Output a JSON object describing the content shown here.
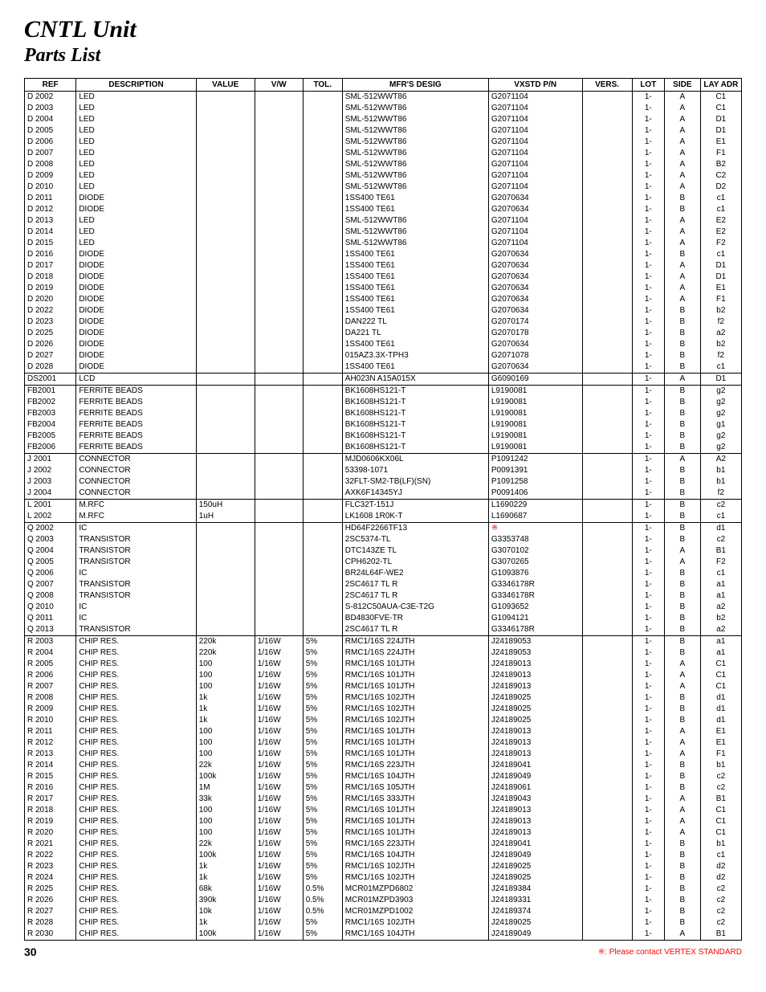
{
  "title": "CNTL Unit",
  "subtitle": "Parts List",
  "headers": [
    "REF",
    "DESCRIPTION",
    "VALUE",
    "V/W",
    "TOL.",
    "MFR'S DESIG",
    "VXSTD P/N",
    "VERS.",
    "LOT",
    "SIDE",
    "LAY ADR"
  ],
  "footer": {
    "page": "30",
    "note": "※: Please contact VERTEX STANDARD"
  },
  "rows": [
    {
      "sep": true,
      "ref": "D 2002",
      "desc": "LED",
      "val": "",
      "vw": "",
      "tol": "",
      "mfr": "SML-512WWT86",
      "pn": "G2071104",
      "vers": "",
      "lot": "1-",
      "side": "A",
      "lay": "C1"
    },
    {
      "ref": "D 2003",
      "desc": "LED",
      "val": "",
      "vw": "",
      "tol": "",
      "mfr": "SML-512WWT86",
      "pn": "G2071104",
      "vers": "",
      "lot": "1-",
      "side": "A",
      "lay": "C1"
    },
    {
      "ref": "D 2004",
      "desc": "LED",
      "val": "",
      "vw": "",
      "tol": "",
      "mfr": "SML-512WWT86",
      "pn": "G2071104",
      "vers": "",
      "lot": "1-",
      "side": "A",
      "lay": "D1"
    },
    {
      "ref": "D 2005",
      "desc": "LED",
      "val": "",
      "vw": "",
      "tol": "",
      "mfr": "SML-512WWT86",
      "pn": "G2071104",
      "vers": "",
      "lot": "1-",
      "side": "A",
      "lay": "D1"
    },
    {
      "ref": "D 2006",
      "desc": "LED",
      "val": "",
      "vw": "",
      "tol": "",
      "mfr": "SML-512WWT86",
      "pn": "G2071104",
      "vers": "",
      "lot": "1-",
      "side": "A",
      "lay": "E1"
    },
    {
      "ref": "D 2007",
      "desc": "LED",
      "val": "",
      "vw": "",
      "tol": "",
      "mfr": "SML-512WWT86",
      "pn": "G2071104",
      "vers": "",
      "lot": "1-",
      "side": "A",
      "lay": "F1"
    },
    {
      "ref": "D 2008",
      "desc": "LED",
      "val": "",
      "vw": "",
      "tol": "",
      "mfr": "SML-512WWT86",
      "pn": "G2071104",
      "vers": "",
      "lot": "1-",
      "side": "A",
      "lay": "B2"
    },
    {
      "ref": "D 2009",
      "desc": "LED",
      "val": "",
      "vw": "",
      "tol": "",
      "mfr": "SML-512WWT86",
      "pn": "G2071104",
      "vers": "",
      "lot": "1-",
      "side": "A",
      "lay": "C2"
    },
    {
      "ref": "D 2010",
      "desc": "LED",
      "val": "",
      "vw": "",
      "tol": "",
      "mfr": "SML-512WWT86",
      "pn": "G2071104",
      "vers": "",
      "lot": "1-",
      "side": "A",
      "lay": "D2"
    },
    {
      "ref": "D 2011",
      "desc": "DIODE",
      "val": "",
      "vw": "",
      "tol": "",
      "mfr": "1SS400 TE61",
      "pn": "G2070634",
      "vers": "",
      "lot": "1-",
      "side": "B",
      "lay": "c1"
    },
    {
      "ref": "D 2012",
      "desc": "DIODE",
      "val": "",
      "vw": "",
      "tol": "",
      "mfr": "1SS400 TE61",
      "pn": "G2070634",
      "vers": "",
      "lot": "1-",
      "side": "B",
      "lay": "c1"
    },
    {
      "ref": "D 2013",
      "desc": "LED",
      "val": "",
      "vw": "",
      "tol": "",
      "mfr": "SML-512WWT86",
      "pn": "G2071104",
      "vers": "",
      "lot": "1-",
      "side": "A",
      "lay": "E2"
    },
    {
      "ref": "D 2014",
      "desc": "LED",
      "val": "",
      "vw": "",
      "tol": "",
      "mfr": "SML-512WWT86",
      "pn": "G2071104",
      "vers": "",
      "lot": "1-",
      "side": "A",
      "lay": "E2"
    },
    {
      "ref": "D 2015",
      "desc": "LED",
      "val": "",
      "vw": "",
      "tol": "",
      "mfr": "SML-512WWT86",
      "pn": "G2071104",
      "vers": "",
      "lot": "1-",
      "side": "A",
      "lay": "F2"
    },
    {
      "ref": "D 2016",
      "desc": "DIODE",
      "val": "",
      "vw": "",
      "tol": "",
      "mfr": "1SS400 TE61",
      "pn": "G2070634",
      "vers": "",
      "lot": "1-",
      "side": "B",
      "lay": "c1"
    },
    {
      "ref": "D 2017",
      "desc": "DIODE",
      "val": "",
      "vw": "",
      "tol": "",
      "mfr": "1SS400 TE61",
      "pn": "G2070634",
      "vers": "",
      "lot": "1-",
      "side": "A",
      "lay": "D1"
    },
    {
      "ref": "D 2018",
      "desc": "DIODE",
      "val": "",
      "vw": "",
      "tol": "",
      "mfr": "1SS400 TE61",
      "pn": "G2070634",
      "vers": "",
      "lot": "1-",
      "side": "A",
      "lay": "D1"
    },
    {
      "ref": "D 2019",
      "desc": "DIODE",
      "val": "",
      "vw": "",
      "tol": "",
      "mfr": "1SS400 TE61",
      "pn": "G2070634",
      "vers": "",
      "lot": "1-",
      "side": "A",
      "lay": "E1"
    },
    {
      "ref": "D 2020",
      "desc": "DIODE",
      "val": "",
      "vw": "",
      "tol": "",
      "mfr": "1SS400 TE61",
      "pn": "G2070634",
      "vers": "",
      "lot": "1-",
      "side": "A",
      "lay": "F1"
    },
    {
      "ref": "D 2022",
      "desc": "DIODE",
      "val": "",
      "vw": "",
      "tol": "",
      "mfr": "1SS400 TE61",
      "pn": "G2070634",
      "vers": "",
      "lot": "1-",
      "side": "B",
      "lay": "b2"
    },
    {
      "ref": "D 2023",
      "desc": "DIODE",
      "val": "",
      "vw": "",
      "tol": "",
      "mfr": "DAN222 TL",
      "pn": "G2070174",
      "vers": "",
      "lot": "1-",
      "side": "B",
      "lay": "f2"
    },
    {
      "ref": "D 2025",
      "desc": "DIODE",
      "val": "",
      "vw": "",
      "tol": "",
      "mfr": "DA221 TL",
      "pn": "G2070178",
      "vers": "",
      "lot": "1-",
      "side": "B",
      "lay": "a2"
    },
    {
      "ref": "D 2026",
      "desc": "DIODE",
      "val": "",
      "vw": "",
      "tol": "",
      "mfr": "1SS400 TE61",
      "pn": "G2070634",
      "vers": "",
      "lot": "1-",
      "side": "B",
      "lay": "b2"
    },
    {
      "ref": "D 2027",
      "desc": "DIODE",
      "val": "",
      "vw": "",
      "tol": "",
      "mfr": "015AZ3.3X-TPH3",
      "pn": "G2071078",
      "vers": "",
      "lot": "1-",
      "side": "B",
      "lay": "f2"
    },
    {
      "ref": "D 2028",
      "desc": "DIODE",
      "val": "",
      "vw": "",
      "tol": "",
      "mfr": "1SS400 TE61",
      "pn": "G2070634",
      "vers": "",
      "lot": "1-",
      "side": "B",
      "lay": "c1"
    },
    {
      "sep": true,
      "ref": "DS2001",
      "desc": "LCD",
      "val": "",
      "vw": "",
      "tol": "",
      "mfr": "AH023N A15A015X",
      "pn": "G6090169",
      "vers": "",
      "lot": "1-",
      "side": "A",
      "lay": "D1"
    },
    {
      "sep": true,
      "ref": "FB2001",
      "desc": "FERRITE BEADS",
      "val": "",
      "vw": "",
      "tol": "",
      "mfr": "BK1608HS121-T",
      "pn": "L9190081",
      "vers": "",
      "lot": "1-",
      "side": "B",
      "lay": "g2"
    },
    {
      "ref": "FB2002",
      "desc": "FERRITE BEADS",
      "val": "",
      "vw": "",
      "tol": "",
      "mfr": "BK1608HS121-T",
      "pn": "L9190081",
      "vers": "",
      "lot": "1-",
      "side": "B",
      "lay": "g2"
    },
    {
      "ref": "FB2003",
      "desc": "FERRITE BEADS",
      "val": "",
      "vw": "",
      "tol": "",
      "mfr": "BK1608HS121-T",
      "pn": "L9190081",
      "vers": "",
      "lot": "1-",
      "side": "B",
      "lay": "g2"
    },
    {
      "ref": "FB2004",
      "desc": "FERRITE BEADS",
      "val": "",
      "vw": "",
      "tol": "",
      "mfr": "BK1608HS121-T",
      "pn": "L9190081",
      "vers": "",
      "lot": "1-",
      "side": "B",
      "lay": "g1"
    },
    {
      "ref": "FB2005",
      "desc": "FERRITE BEADS",
      "val": "",
      "vw": "",
      "tol": "",
      "mfr": "BK1608HS121-T",
      "pn": "L9190081",
      "vers": "",
      "lot": "1-",
      "side": "B",
      "lay": "g2"
    },
    {
      "ref": "FB2006",
      "desc": "FERRITE BEADS",
      "val": "",
      "vw": "",
      "tol": "",
      "mfr": "BK1608HS121-T",
      "pn": "L9190081",
      "vers": "",
      "lot": "1-",
      "side": "B",
      "lay": "g2"
    },
    {
      "sep": true,
      "ref": "J 2001",
      "desc": "CONNECTOR",
      "val": "",
      "vw": "",
      "tol": "",
      "mfr": "MJD0606KX06L",
      "pn": "P1091242",
      "vers": "",
      "lot": "1-",
      "side": "A",
      "lay": "A2"
    },
    {
      "ref": "J 2002",
      "desc": "CONNECTOR",
      "val": "",
      "vw": "",
      "tol": "",
      "mfr": "53398-1071",
      "pn": "P0091391",
      "vers": "",
      "lot": "1-",
      "side": "B",
      "lay": "b1"
    },
    {
      "ref": "J 2003",
      "desc": "CONNECTOR",
      "val": "",
      "vw": "",
      "tol": "",
      "mfr": "32FLT-SM2-TB(LF)(SN)",
      "pn": "P1091258",
      "vers": "",
      "lot": "1-",
      "side": "B",
      "lay": "b1"
    },
    {
      "ref": "J 2004",
      "desc": "CONNECTOR",
      "val": "",
      "vw": "",
      "tol": "",
      "mfr": "AXK6F14345YJ",
      "pn": "P0091406",
      "vers": "",
      "lot": "1-",
      "side": "B",
      "lay": "f2"
    },
    {
      "sep": true,
      "ref": "L 2001",
      "desc": "M.RFC",
      "val": "150uH",
      "vw": "",
      "tol": "",
      "mfr": "FLC32T-151J",
      "pn": "L1690229",
      "vers": "",
      "lot": "1-",
      "side": "B",
      "lay": "c2"
    },
    {
      "ref": "L 2002",
      "desc": "M.RFC",
      "val": "1uH",
      "vw": "",
      "tol": "",
      "mfr": "LK1608 1R0K-T",
      "pn": "L1690687",
      "vers": "",
      "lot": "1-",
      "side": "B",
      "lay": "c1"
    },
    {
      "sep": true,
      "ref": "Q 2002",
      "desc": "IC",
      "val": "",
      "vw": "",
      "tol": "",
      "mfr": "HD64F2266TF13",
      "pn": "※",
      "pnred": true,
      "vers": "",
      "lot": "1-",
      "side": "B",
      "lay": "d1"
    },
    {
      "ref": "Q 2003",
      "desc": "TRANSISTOR",
      "val": "",
      "vw": "",
      "tol": "",
      "mfr": "2SC5374-TL",
      "pn": "G3353748",
      "vers": "",
      "lot": "1-",
      "side": "B",
      "lay": "c2"
    },
    {
      "ref": "Q 2004",
      "desc": "TRANSISTOR",
      "val": "",
      "vw": "",
      "tol": "",
      "mfr": "DTC143ZE TL",
      "pn": "G3070102",
      "vers": "",
      "lot": "1-",
      "side": "A",
      "lay": "B1"
    },
    {
      "ref": "Q 2005",
      "desc": "TRANSISTOR",
      "val": "",
      "vw": "",
      "tol": "",
      "mfr": "CPH6202-TL",
      "pn": "G3070265",
      "vers": "",
      "lot": "1-",
      "side": "A",
      "lay": "F2"
    },
    {
      "ref": "Q 2006",
      "desc": "IC",
      "val": "",
      "vw": "",
      "tol": "",
      "mfr": "BR24L64F-WE2",
      "pn": "G1093876",
      "vers": "",
      "lot": "1-",
      "side": "B",
      "lay": "c1"
    },
    {
      "ref": "Q 2007",
      "desc": "TRANSISTOR",
      "val": "",
      "vw": "",
      "tol": "",
      "mfr": "2SC4617 TL R",
      "pn": "G3346178R",
      "vers": "",
      "lot": "1-",
      "side": "B",
      "lay": "a1"
    },
    {
      "ref": "Q 2008",
      "desc": "TRANSISTOR",
      "val": "",
      "vw": "",
      "tol": "",
      "mfr": "2SC4617 TL R",
      "pn": "G3346178R",
      "vers": "",
      "lot": "1-",
      "side": "B",
      "lay": "a1"
    },
    {
      "ref": "Q 2010",
      "desc": "IC",
      "val": "",
      "vw": "",
      "tol": "",
      "mfr": "S-812C50AUA-C3E-T2G",
      "pn": "G1093652",
      "vers": "",
      "lot": "1-",
      "side": "B",
      "lay": "a2"
    },
    {
      "ref": "Q 2011",
      "desc": "IC",
      "val": "",
      "vw": "",
      "tol": "",
      "mfr": "BD4830FVE-TR",
      "pn": "G1094121",
      "vers": "",
      "lot": "1-",
      "side": "B",
      "lay": "b2"
    },
    {
      "ref": "Q 2013",
      "desc": "TRANSISTOR",
      "val": "",
      "vw": "",
      "tol": "",
      "mfr": "2SC4617 TL R",
      "pn": "G3346178R",
      "vers": "",
      "lot": "1-",
      "side": "B",
      "lay": "a2"
    },
    {
      "sep": true,
      "ref": "R 2003",
      "desc": "CHIP RES.",
      "val": "220k",
      "vw": "1/16W",
      "tol": "5%",
      "mfr": "RMC1/16S 224JTH",
      "pn": "J24189053",
      "vers": "",
      "lot": "1-",
      "side": "B",
      "lay": "a1"
    },
    {
      "ref": "R 2004",
      "desc": "CHIP RES.",
      "val": "220k",
      "vw": "1/16W",
      "tol": "5%",
      "mfr": "RMC1/16S 224JTH",
      "pn": "J24189053",
      "vers": "",
      "lot": "1-",
      "side": "B",
      "lay": "a1"
    },
    {
      "ref": "R 2005",
      "desc": "CHIP RES.",
      "val": "100",
      "vw": "1/16W",
      "tol": "5%",
      "mfr": "RMC1/16S 101JTH",
      "pn": "J24189013",
      "vers": "",
      "lot": "1-",
      "side": "A",
      "lay": "C1"
    },
    {
      "ref": "R 2006",
      "desc": "CHIP RES.",
      "val": "100",
      "vw": "1/16W",
      "tol": "5%",
      "mfr": "RMC1/16S 101JTH",
      "pn": "J24189013",
      "vers": "",
      "lot": "1-",
      "side": "A",
      "lay": "C1"
    },
    {
      "ref": "R 2007",
      "desc": "CHIP RES.",
      "val": "100",
      "vw": "1/16W",
      "tol": "5%",
      "mfr": "RMC1/16S 101JTH",
      "pn": "J24189013",
      "vers": "",
      "lot": "1-",
      "side": "A",
      "lay": "C1"
    },
    {
      "ref": "R 2008",
      "desc": "CHIP RES.",
      "val": "1k",
      "vw": "1/16W",
      "tol": "5%",
      "mfr": "RMC1/16S 102JTH",
      "pn": "J24189025",
      "vers": "",
      "lot": "1-",
      "side": "B",
      "lay": "d1"
    },
    {
      "ref": "R 2009",
      "desc": "CHIP RES.",
      "val": "1k",
      "vw": "1/16W",
      "tol": "5%",
      "mfr": "RMC1/16S 102JTH",
      "pn": "J24189025",
      "vers": "",
      "lot": "1-",
      "side": "B",
      "lay": "d1"
    },
    {
      "ref": "R 2010",
      "desc": "CHIP RES.",
      "val": "1k",
      "vw": "1/16W",
      "tol": "5%",
      "mfr": "RMC1/16S 102JTH",
      "pn": "J24189025",
      "vers": "",
      "lot": "1-",
      "side": "B",
      "lay": "d1"
    },
    {
      "ref": "R 2011",
      "desc": "CHIP RES.",
      "val": "100",
      "vw": "1/16W",
      "tol": "5%",
      "mfr": "RMC1/16S 101JTH",
      "pn": "J24189013",
      "vers": "",
      "lot": "1-",
      "side": "A",
      "lay": "E1"
    },
    {
      "ref": "R 2012",
      "desc": "CHIP RES.",
      "val": "100",
      "vw": "1/16W",
      "tol": "5%",
      "mfr": "RMC1/16S 101JTH",
      "pn": "J24189013",
      "vers": "",
      "lot": "1-",
      "side": "A",
      "lay": "E1"
    },
    {
      "ref": "R 2013",
      "desc": "CHIP RES.",
      "val": "100",
      "vw": "1/16W",
      "tol": "5%",
      "mfr": "RMC1/16S 101JTH",
      "pn": "J24189013",
      "vers": "",
      "lot": "1-",
      "side": "A",
      "lay": "F1"
    },
    {
      "ref": "R 2014",
      "desc": "CHIP RES.",
      "val": "22k",
      "vw": "1/16W",
      "tol": "5%",
      "mfr": "RMC1/16S 223JTH",
      "pn": "J24189041",
      "vers": "",
      "lot": "1-",
      "side": "B",
      "lay": "b1"
    },
    {
      "ref": "R 2015",
      "desc": "CHIP RES.",
      "val": "100k",
      "vw": "1/16W",
      "tol": "5%",
      "mfr": "RMC1/16S 104JTH",
      "pn": "J24189049",
      "vers": "",
      "lot": "1-",
      "side": "B",
      "lay": "c2"
    },
    {
      "ref": "R 2016",
      "desc": "CHIP RES.",
      "val": "1M",
      "vw": "1/16W",
      "tol": "5%",
      "mfr": "RMC1/16S 105JTH",
      "pn": "J24189061",
      "vers": "",
      "lot": "1-",
      "side": "B",
      "lay": "c2"
    },
    {
      "ref": "R 2017",
      "desc": "CHIP RES.",
      "val": "33k",
      "vw": "1/16W",
      "tol": "5%",
      "mfr": "RMC1/16S 333JTH",
      "pn": "J24189043",
      "vers": "",
      "lot": "1-",
      "side": "A",
      "lay": "B1"
    },
    {
      "ref": "R 2018",
      "desc": "CHIP RES.",
      "val": "100",
      "vw": "1/16W",
      "tol": "5%",
      "mfr": "RMC1/16S 101JTH",
      "pn": "J24189013",
      "vers": "",
      "lot": "1-",
      "side": "A",
      "lay": "C1"
    },
    {
      "ref": "R 2019",
      "desc": "CHIP RES.",
      "val": "100",
      "vw": "1/16W",
      "tol": "5%",
      "mfr": "RMC1/16S 101JTH",
      "pn": "J24189013",
      "vers": "",
      "lot": "1-",
      "side": "A",
      "lay": "C1"
    },
    {
      "ref": "R 2020",
      "desc": "CHIP RES.",
      "val": "100",
      "vw": "1/16W",
      "tol": "5%",
      "mfr": "RMC1/16S 101JTH",
      "pn": "J24189013",
      "vers": "",
      "lot": "1-",
      "side": "A",
      "lay": "C1"
    },
    {
      "ref": "R 2021",
      "desc": "CHIP RES.",
      "val": "22k",
      "vw": "1/16W",
      "tol": "5%",
      "mfr": "RMC1/16S 223JTH",
      "pn": "J24189041",
      "vers": "",
      "lot": "1-",
      "side": "B",
      "lay": "b1"
    },
    {
      "ref": "R 2022",
      "desc": "CHIP RES.",
      "val": "100k",
      "vw": "1/16W",
      "tol": "5%",
      "mfr": "RMC1/16S 104JTH",
      "pn": "J24189049",
      "vers": "",
      "lot": "1-",
      "side": "B",
      "lay": "c1"
    },
    {
      "ref": "R 2023",
      "desc": "CHIP RES.",
      "val": "1k",
      "vw": "1/16W",
      "tol": "5%",
      "mfr": "RMC1/16S 102JTH",
      "pn": "J24189025",
      "vers": "",
      "lot": "1-",
      "side": "B",
      "lay": "d2"
    },
    {
      "ref": "R 2024",
      "desc": "CHIP RES.",
      "val": "1k",
      "vw": "1/16W",
      "tol": "5%",
      "mfr": "RMC1/16S 102JTH",
      "pn": "J24189025",
      "vers": "",
      "lot": "1-",
      "side": "B",
      "lay": "d2"
    },
    {
      "ref": "R 2025",
      "desc": "CHIP RES.",
      "val": "68k",
      "vw": "1/16W",
      "tol": "0.5%",
      "mfr": "MCR01MZPD6802",
      "pn": "J24189384",
      "vers": "",
      "lot": "1-",
      "side": "B",
      "lay": "c2"
    },
    {
      "ref": "R 2026",
      "desc": "CHIP RES.",
      "val": "390k",
      "vw": "1/16W",
      "tol": "0.5%",
      "mfr": "MCR01MZPD3903",
      "pn": "J24189331",
      "vers": "",
      "lot": "1-",
      "side": "B",
      "lay": "c2"
    },
    {
      "ref": "R 2027",
      "desc": "CHIP RES.",
      "val": "10k",
      "vw": "1/16W",
      "tol": "0.5%",
      "mfr": "MCR01MZPD1002",
      "pn": "J24189374",
      "vers": "",
      "lot": "1-",
      "side": "B",
      "lay": "c2"
    },
    {
      "ref": "R 2028",
      "desc": "CHIP RES.",
      "val": "1k",
      "vw": "1/16W",
      "tol": "5%",
      "mfr": "RMC1/16S 102JTH",
      "pn": "J24189025",
      "vers": "",
      "lot": "1-",
      "side": "B",
      "lay": "c2"
    },
    {
      "ref": "R 2030",
      "desc": "CHIP RES.",
      "val": "100k",
      "vw": "1/16W",
      "tol": "5%",
      "mfr": "RMC1/16S 104JTH",
      "pn": "J24189049",
      "vers": "",
      "lot": "1-",
      "side": "A",
      "lay": "B1"
    }
  ]
}
